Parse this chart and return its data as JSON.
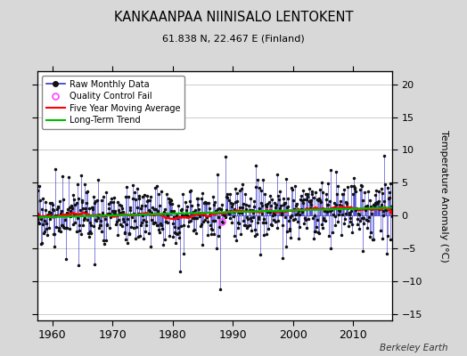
{
  "title": "KANKAANPAA NIINISALO LENTOKENT",
  "subtitle": "61.838 N, 22.467 E (Finland)",
  "ylabel": "Temperature Anomaly (°C)",
  "attribution": "Berkeley Earth",
  "xlim": [
    1957.5,
    2016.5
  ],
  "ylim": [
    -16,
    22
  ],
  "yticks": [
    -15,
    -10,
    -5,
    0,
    5,
    10,
    15,
    20
  ],
  "xticks": [
    1960,
    1970,
    1980,
    1990,
    2000,
    2010
  ],
  "start_year": 1957,
  "end_year": 2016,
  "bg_color": "#d8d8d8",
  "plot_bg_color": "#ffffff",
  "raw_line_color": "#3333cc",
  "raw_marker_color": "#111111",
  "moving_avg_color": "#ff0000",
  "trend_color": "#00bb00",
  "qc_color": "#ff44ff",
  "seed": 17
}
